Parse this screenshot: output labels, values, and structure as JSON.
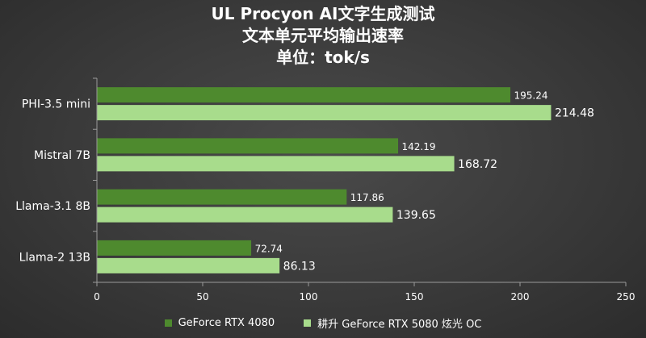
{
  "chart_data": {
    "type": "bar",
    "orientation": "horizontal",
    "title": [
      "UL Procyon AI文字生成测试",
      "文本单元平均输出速率",
      "单位：tok/s"
    ],
    "categories": [
      "PHI-3.5 mini",
      "Mistral 7B",
      "Llama-3.1 8B",
      "Llama-2 13B"
    ],
    "series": [
      {
        "name": "GeForce RTX 4080",
        "color": "#4e8a2e",
        "values": [
          195.24,
          142.19,
          117.86,
          72.74
        ]
      },
      {
        "name": "耕升 GeForce RTX 5080 炫光 OC",
        "color": "#a8dc8c",
        "values": [
          214.48,
          168.72,
          139.65,
          86.13
        ]
      }
    ],
    "xlim": [
      0,
      250
    ],
    "xticks": [
      0,
      50,
      100,
      150,
      200,
      250
    ],
    "grid": false,
    "legend_position": "bottom"
  }
}
